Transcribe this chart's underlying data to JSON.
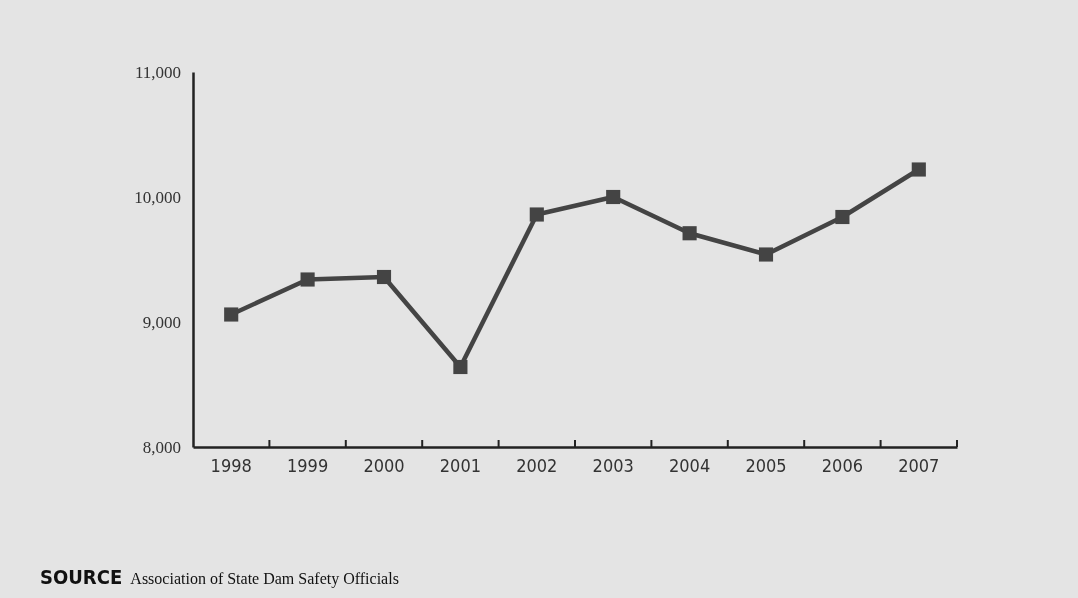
{
  "chart_data": {
    "type": "line",
    "categories": [
      "1998",
      "1999",
      "2000",
      "2001",
      "2002",
      "2003",
      "2004",
      "2005",
      "2006",
      "2007"
    ],
    "series": [
      {
        "color": "#444444",
        "values": [
          9060,
          9340,
          9360,
          8640,
          9860,
          10000,
          9710,
          9540,
          9840,
          10220
        ]
      }
    ],
    "ylim": [
      8000,
      11000
    ],
    "yticks": [
      {
        "value": 8000,
        "label": "8,000"
      },
      {
        "value": 9000,
        "label": "9,000"
      },
      {
        "value": 10000,
        "label": "10,000"
      },
      {
        "value": 11000,
        "label": "11,000"
      }
    ],
    "marker": "square",
    "line_style": "solid",
    "grid": false,
    "annotations": [
      "SOURCE Association of State Dam Safety Officials"
    ]
  }
}
